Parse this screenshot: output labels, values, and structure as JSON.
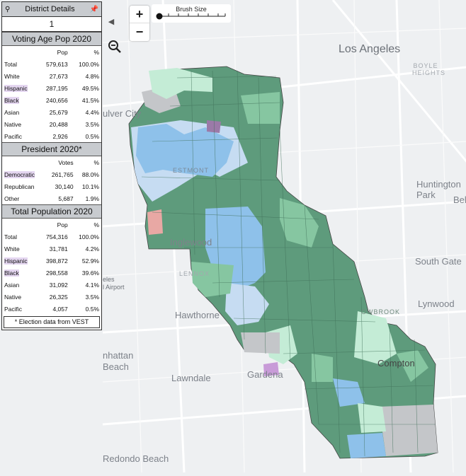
{
  "panel": {
    "title": "District Details",
    "district_number": "1",
    "voting_age": {
      "heading": "Voting Age Pop 2020",
      "col_pop": "Pop",
      "col_pct": "%",
      "rows": [
        {
          "label": "Total",
          "pop": "579,613",
          "pct": "100.0%"
        },
        {
          "label": "White",
          "pop": "27,673",
          "pct": "4.8%"
        },
        {
          "label": "Hispanic",
          "pop": "287,195",
          "pct": "49.5%"
        },
        {
          "label": "Black",
          "pop": "240,656",
          "pct": "41.5%"
        },
        {
          "label": "Asian",
          "pop": "25,679",
          "pct": "4.4%"
        },
        {
          "label": "Native",
          "pop": "20,488",
          "pct": "3.5%"
        },
        {
          "label": "Pacific",
          "pop": "2,926",
          "pct": "0.5%"
        }
      ]
    },
    "president": {
      "heading": "President 2020*",
      "col_votes": "Votes",
      "col_pct": "%",
      "rows": [
        {
          "label": "Democratic",
          "votes": "261,765",
          "pct": "88.0%"
        },
        {
          "label": "Republican",
          "votes": "30,140",
          "pct": "10.1%"
        },
        {
          "label": "Other",
          "votes": "5,687",
          "pct": "1.9%"
        }
      ]
    },
    "total_pop": {
      "heading": "Total Population 2020",
      "col_pop": "Pop",
      "col_pct": "%",
      "rows": [
        {
          "label": "Total",
          "pop": "754,316",
          "pct": "100.0%"
        },
        {
          "label": "White",
          "pop": "31,781",
          "pct": "4.2%"
        },
        {
          "label": "Hispanic",
          "pop": "398,872",
          "pct": "52.9%"
        },
        {
          "label": "Black",
          "pop": "298,558",
          "pct": "39.6%"
        },
        {
          "label": "Asian",
          "pop": "31,092",
          "pct": "4.1%"
        },
        {
          "label": "Native",
          "pop": "26,325",
          "pct": "3.5%"
        },
        {
          "label": "Pacific",
          "pop": "4,057",
          "pct": "0.5%"
        }
      ]
    },
    "footnote": "* Election data from VEST"
  },
  "map_controls": {
    "zoom_in": "+",
    "zoom_out": "−",
    "collapse": "◀",
    "brush_label": "Brush Size"
  },
  "map_labels": {
    "los_angeles": "Los Angeles",
    "boyle_heights": "BOYLE HEIGHTS",
    "culver_city": "ulver City",
    "huntington_park": "Huntington Park",
    "bell": "Bel",
    "south_gate": "South Gate",
    "lynwood": "Lynwood",
    "inglewood": "Inglewood",
    "lennox": "LENNOX",
    "airport_line1": "eles",
    "airport_line2": "l Airport",
    "hawthorne": "Hawthorne",
    "manhattan_beach_1": "nhattan",
    "manhattan_beach_2": "Beach",
    "lawndale": "Lawndale",
    "gardena": "Gardena",
    "compton": "Compton",
    "westmont": "ESTMONT",
    "willowbrook": "OWBROOK",
    "redondo": "Redondo Beach"
  },
  "colors": {
    "dark_green": "#5e9b7c",
    "mid_green": "#86c6a1",
    "light_green": "#c4ecd6",
    "blue": "#8ec1ea",
    "light_blue": "#c6dcf2",
    "gray": "#c4c6c9",
    "purple": "#c89bd8",
    "red": "#e8a8a4",
    "highlight": "#e4d6f0"
  }
}
